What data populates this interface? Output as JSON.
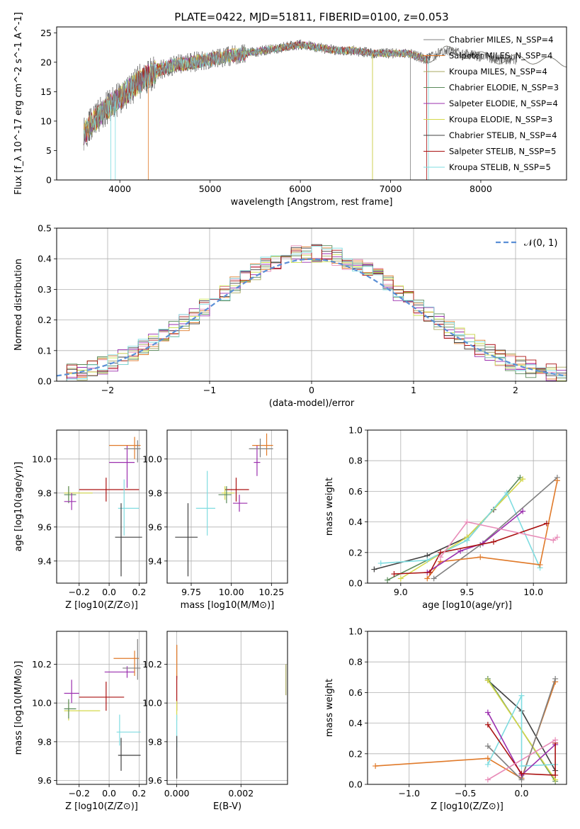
{
  "figure_title": "PLATE=0422, MJD=51811, FIBERID=0100, z=0.053",
  "model_colors": [
    "#808080",
    "#e07a2a",
    "#a8a860",
    "#5a8a5a",
    "#9b2fae",
    "#d4d84a",
    "#404040",
    "#aa1111",
    "#7fdce0"
  ],
  "chart_data": [
    {
      "id": "spectrum",
      "type": "line",
      "title": "PLATE=0422, MJD=51811, FIBERID=0100, z=0.053",
      "xlabel": "wavelength [Angstrom, rest frame]",
      "ylabel": "Flux [f_λ 10^-17 erg cm^-2 s^-1 A^-1]",
      "xlim": [
        3300,
        8950
      ],
      "ylim": [
        0,
        26
      ],
      "xticks": [
        4000,
        5000,
        6000,
        7000,
        8000
      ],
      "yticks": [
        0,
        5,
        10,
        15,
        20,
        25
      ],
      "grid": false,
      "legend_position": "top-right",
      "legend": [
        "Chabrier MILES, N_SSP=4",
        "Salpeter MILES, N_SSP=4",
        "Kroupa MILES, N_SSP=4",
        "Chabrier ELODIE, N_SSP=3",
        "Salpeter ELODIE, N_SSP=4",
        "Kroupa ELODIE, N_SSP=3",
        "Chabrier STELIB, N_SSP=4",
        "Salpeter STELIB, N_SSP=5",
        "Kroupa STELIB, N_SSP=5"
      ],
      "continuum": {
        "x": [
          3600,
          3800,
          4000,
          4200,
          4400,
          4600,
          4800,
          5000,
          5200,
          5400,
          5600,
          5800,
          6000,
          6200,
          6400,
          6600,
          6800,
          7000,
          7200,
          7400,
          7600,
          7800,
          8000,
          8200,
          8400,
          8600,
          8800
        ],
        "y": [
          8,
          11.5,
          14,
          16.5,
          18.5,
          19.5,
          20,
          20.5,
          21,
          21.5,
          22,
          22.5,
          23,
          22.5,
          22,
          22,
          21.5,
          21.5,
          21.5,
          20.5,
          22,
          21.5,
          21,
          20.5,
          20.5,
          20.5,
          20
        ]
      },
      "observed_end": 8400
    },
    {
      "id": "residuals",
      "type": "line",
      "xlabel": "(data-model)/error",
      "ylabel": "Normed distribution",
      "xlim": [
        -2.5,
        2.5
      ],
      "ylim": [
        0,
        0.5
      ],
      "xticks": [
        -2,
        -1,
        0,
        1,
        2
      ],
      "yticks": [
        0,
        0.1,
        0.2,
        0.3,
        0.4,
        0.5
      ],
      "grid": true,
      "legend_position": "top-right",
      "legend": [
        "𝒩(0, 1)"
      ],
      "bins": 50,
      "reference": "normal(0,1)"
    },
    {
      "id": "age-vs-z",
      "type": "scatter",
      "xlabel": "Z [log10(Z/Z⊙)]",
      "ylabel": "age [log10(age/yr)]",
      "xlim": [
        -0.35,
        0.25
      ],
      "ylim": [
        9.27,
        10.17
      ],
      "xticks": [
        -0.2,
        0.0,
        0.2
      ],
      "yticks": [
        9.4,
        9.6,
        9.8,
        10.0
      ],
      "grid": true,
      "points": [
        {
          "x": 0.12,
          "y": 9.98,
          "xerr": [
            0.12,
            0.05
          ],
          "yerr": [
            0.15,
            0.1
          ],
          "c": 4
        },
        {
          "x": 0.17,
          "y": 10.08,
          "xerr": [
            0.17,
            0.04
          ],
          "yerr": [
            0.08,
            0.05
          ],
          "c": 1
        },
        {
          "x": 0.19,
          "y": 10.06,
          "xerr": [
            0.09,
            0.02
          ],
          "yerr": [
            0.08,
            0.05
          ],
          "c": 0
        },
        {
          "x": -0.02,
          "y": 9.82,
          "xerr": [
            0.18,
            0.22
          ],
          "yerr": [
            0.07,
            0.07
          ],
          "c": 7
        },
        {
          "x": -0.27,
          "y": 9.8,
          "xerr": [
            0.03,
            0.16
          ],
          "yerr": [
            0.04,
            0.04
          ],
          "c": 5
        },
        {
          "x": -0.27,
          "y": 9.79,
          "xerr": [
            0.03,
            0.05
          ],
          "yerr": [
            0.05,
            0.05
          ],
          "c": 3
        },
        {
          "x": -0.25,
          "y": 9.75,
          "xerr": [
            0.05,
            0.03
          ],
          "yerr": [
            0.05,
            0.05
          ],
          "c": 4
        },
        {
          "x": 0.1,
          "y": 9.71,
          "xerr": [
            0.04,
            0.1
          ],
          "yerr": [
            0.16,
            0.17
          ],
          "c": 8
        },
        {
          "x": 0.08,
          "y": 9.54,
          "xerr": [
            0.04,
            0.14
          ],
          "yerr": [
            0.23,
            0.2
          ],
          "c": 6
        }
      ]
    },
    {
      "id": "age-vs-mass",
      "type": "scatter",
      "xlabel": "mass [log10(M/M⊙)]",
      "ylabel": "",
      "xlim": [
        9.6,
        10.35
      ],
      "ylim": [
        9.27,
        10.17
      ],
      "xticks": [
        9.75,
        10.0,
        10.25
      ],
      "yticks": [
        9.4,
        9.6,
        9.8,
        10.0
      ],
      "grid": true,
      "points": [
        {
          "x": 10.16,
          "y": 9.98,
          "xerr": [
            0.02,
            0.02
          ],
          "yerr": [
            0.08,
            0.1
          ],
          "c": 4
        },
        {
          "x": 10.22,
          "y": 10.08,
          "xerr": [
            0.09,
            0.04
          ],
          "yerr": [
            0.06,
            0.07
          ],
          "c": 1
        },
        {
          "x": 10.18,
          "y": 10.06,
          "xerr": [
            0.07,
            0.08
          ],
          "yerr": [
            0.05,
            0.06
          ],
          "c": 0
        },
        {
          "x": 10.03,
          "y": 9.82,
          "xerr": [
            0.07,
            0.08
          ],
          "yerr": [
            0.07,
            0.07
          ],
          "c": 7
        },
        {
          "x": 9.96,
          "y": 9.8,
          "xerr": [
            0.02,
            0.06
          ],
          "yerr": [
            0.04,
            0.04
          ],
          "c": 5
        },
        {
          "x": 9.97,
          "y": 9.79,
          "xerr": [
            0.05,
            0.03
          ],
          "yerr": [
            0.05,
            0.05
          ],
          "c": 3
        },
        {
          "x": 10.05,
          "y": 9.74,
          "xerr": [
            0.04,
            0.05
          ],
          "yerr": [
            0.05,
            0.05
          ],
          "c": 4
        },
        {
          "x": 9.85,
          "y": 9.71,
          "xerr": [
            0.07,
            0.05
          ],
          "yerr": [
            0.16,
            0.22
          ],
          "c": 8
        },
        {
          "x": 9.73,
          "y": 9.54,
          "xerr": [
            0.08,
            0.06
          ],
          "yerr": [
            0.23,
            0.2
          ],
          "c": 6
        }
      ]
    },
    {
      "id": "weight-vs-age",
      "type": "line",
      "xlabel": "age [log10(age/yr)]",
      "ylabel": "mass weight",
      "xlim": [
        8.75,
        10.25
      ],
      "ylim": [
        0,
        1.0
      ],
      "xticks": [
        9.0,
        9.5,
        10.0
      ],
      "yticks": [
        0.0,
        0.2,
        0.4,
        0.6,
        0.8,
        1.0
      ],
      "grid": true,
      "series": [
        {
          "c": 6,
          "x": [
            8.8,
            9.2,
            9.5,
            9.7
          ],
          "y": [
            0.09,
            0.18,
            0.3,
            0.48
          ]
        },
        {
          "c": 3,
          "x": [
            8.9,
            9.5,
            9.9
          ],
          "y": [
            0.02,
            0.28,
            0.69
          ]
        },
        {
          "c": 5,
          "x": [
            9.0,
            9.5,
            9.92
          ],
          "y": [
            0.03,
            0.3,
            0.68
          ]
        },
        {
          "c": 8,
          "x": [
            8.85,
            9.2,
            9.5,
            9.8,
            10.05
          ],
          "y": [
            0.13,
            0.15,
            0.28,
            0.59,
            0.1
          ]
        },
        {
          "c": 0,
          "x": [
            9.25,
            9.6,
            10.18
          ],
          "y": [
            0.03,
            0.25,
            0.69
          ]
        },
        {
          "c": 1,
          "x": [
            9.2,
            9.3,
            9.6,
            10.05,
            10.18
          ],
          "y": [
            0.03,
            0.14,
            0.17,
            0.12,
            0.67
          ]
        },
        {
          "c": 4,
          "x": [
            9.2,
            9.45,
            9.62,
            9.92
          ],
          "y": [
            0.07,
            0.21,
            0.26,
            0.47
          ]
        },
        {
          "c": 7,
          "x": [
            8.95,
            9.22,
            9.3,
            9.7,
            10.1
          ],
          "y": [
            0.06,
            0.07,
            0.2,
            0.27,
            0.39
          ]
        },
        {
          "c": 2,
          "x": [
            9.3,
            9.5,
            10.15,
            10.18
          ],
          "y": [
            0.17,
            0.4,
            0.28,
            0.3
          ]
        }
      ]
    },
    {
      "id": "mass-vs-z",
      "type": "scatter",
      "xlabel": "Z [log10(Z/Z⊙)]",
      "ylabel": "mass [log10(M/M⊙)]",
      "xlim": [
        -0.35,
        0.25
      ],
      "ylim": [
        9.58,
        10.37
      ],
      "xticks": [
        -0.2,
        0.0,
        0.2
      ],
      "yticks": [
        9.6,
        9.8,
        10.0,
        10.2
      ],
      "grid": true,
      "points": [
        {
          "x": 0.12,
          "y": 10.16,
          "xerr": [
            0.15,
            0.05
          ],
          "yerr": [
            0.03,
            0.03
          ],
          "c": 4
        },
        {
          "x": 0.17,
          "y": 10.23,
          "xerr": [
            0.14,
            0.03
          ],
          "yerr": [
            0.09,
            0.04
          ],
          "c": 1
        },
        {
          "x": 0.19,
          "y": 10.18,
          "xerr": [
            0.1,
            0.02
          ],
          "yerr": [
            0.06,
            0.15
          ],
          "c": 0
        },
        {
          "x": -0.02,
          "y": 10.03,
          "xerr": [
            0.18,
            0.12
          ],
          "yerr": [
            0.07,
            0.08
          ],
          "c": 7
        },
        {
          "x": -0.27,
          "y": 9.96,
          "xerr": [
            0.03,
            0.21
          ],
          "yerr": [
            0.05,
            0.05
          ],
          "c": 5
        },
        {
          "x": -0.27,
          "y": 9.97,
          "xerr": [
            0.03,
            0.05
          ],
          "yerr": [
            0.05,
            0.05
          ],
          "c": 3
        },
        {
          "x": -0.25,
          "y": 10.05,
          "xerr": [
            0.05,
            0.05
          ],
          "yerr": [
            0.05,
            0.07
          ],
          "c": 4
        },
        {
          "x": 0.07,
          "y": 9.85,
          "xerr": [
            0.02,
            0.14
          ],
          "yerr": [
            0.07,
            0.09
          ],
          "c": 8
        },
        {
          "x": 0.08,
          "y": 9.73,
          "xerr": [
            0.02,
            0.13
          ],
          "yerr": [
            0.08,
            0.09
          ],
          "c": 6
        }
      ]
    },
    {
      "id": "mass-vs-ebv",
      "type": "scatter",
      "xlabel": "E(B-V)",
      "ylabel": "",
      "xlim": [
        -0.0003,
        0.00345
      ],
      "ylim": [
        9.58,
        10.37
      ],
      "xticks": [
        0.0,
        0.002
      ],
      "yticks": [
        9.6,
        9.8,
        10.0,
        10.2
      ],
      "grid": true,
      "points": [
        {
          "x": 0.0,
          "y": 10.16,
          "xerr": [
            0,
            0
          ],
          "yerr": [
            0.03,
            0.14
          ],
          "c": 0
        },
        {
          "x": 0.0,
          "y": 10.18,
          "xerr": [
            0,
            0
          ],
          "yerr": [
            0.06,
            0.12
          ],
          "c": 1
        },
        {
          "x": 0.0,
          "y": 10.03,
          "xerr": [
            0,
            0
          ],
          "yerr": [
            0.07,
            0.11
          ],
          "c": 7
        },
        {
          "x": 0.0,
          "y": 9.96,
          "xerr": [
            0,
            0
          ],
          "yerr": [
            0.05,
            0.05
          ],
          "c": 5
        },
        {
          "x": 0.0,
          "y": 9.85,
          "xerr": [
            0,
            0
          ],
          "yerr": [
            0.08,
            0.09
          ],
          "c": 8
        },
        {
          "x": 0.0,
          "y": 9.73,
          "xerr": [
            0,
            0
          ],
          "yerr": [
            0.12,
            0.1
          ],
          "c": 6
        },
        {
          "x": 0.0034,
          "y": 10.12,
          "xerr": [
            0,
            0
          ],
          "yerr": [
            0.08,
            0.08
          ],
          "c": 2
        }
      ]
    },
    {
      "id": "weight-vs-z",
      "type": "line",
      "xlabel": "Z [log10(Z/Z⊙)]",
      "ylabel": "mass weight",
      "xlim": [
        -1.37,
        0.4
      ],
      "ylim": [
        0,
        1.0
      ],
      "xticks": [
        -1.0,
        -0.5,
        0.0
      ],
      "yticks": [
        0.0,
        0.2,
        0.4,
        0.6,
        0.8,
        1.0
      ],
      "grid": true,
      "series": [
        {
          "c": 1,
          "x": [
            -1.3,
            -0.3,
            0.0,
            0.3
          ],
          "y": [
            0.12,
            0.17,
            0.04,
            0.67
          ]
        },
        {
          "c": 6,
          "x": [
            -0.3,
            0.0,
            0.3
          ],
          "y": [
            0.68,
            0.48,
            0.09
          ]
        },
        {
          "c": 3,
          "x": [
            -0.3,
            0.3
          ],
          "y": [
            0.69,
            0.02
          ]
        },
        {
          "c": 5,
          "x": [
            -0.3,
            0.3
          ],
          "y": [
            0.68,
            0.03
          ]
        },
        {
          "c": 0,
          "x": [
            -0.3,
            0.0,
            0.3
          ],
          "y": [
            0.25,
            0.03,
            0.69
          ]
        },
        {
          "c": 8,
          "x": [
            -0.3,
            0.0,
            0.0,
            0.3
          ],
          "y": [
            0.13,
            0.58,
            0.12,
            0.13
          ]
        },
        {
          "c": 4,
          "x": [
            -0.3,
            0.0,
            0.3
          ],
          "y": [
            0.47,
            0.06,
            0.26
          ]
        },
        {
          "c": 7,
          "x": [
            -0.3,
            0.0,
            0.3,
            0.3
          ],
          "y": [
            0.39,
            0.07,
            0.06,
            0.27
          ]
        },
        {
          "c": 2,
          "x": [
            -0.3,
            0.3
          ],
          "y": [
            0.03,
            0.29
          ]
        }
      ]
    }
  ]
}
